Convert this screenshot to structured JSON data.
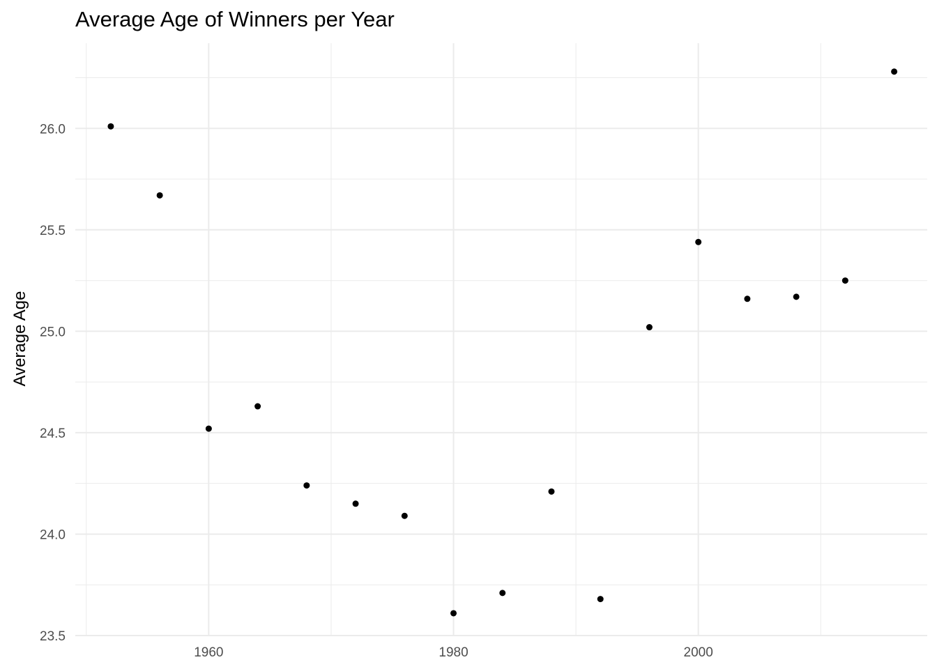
{
  "chart_data": {
    "type": "scatter",
    "title": "Average Age of Winners per Year",
    "xlabel": "",
    "ylabel": "Average Age",
    "xlim": [
      1949.1,
      2018.7
    ],
    "ylim": [
      23.5,
      26.42
    ],
    "x_ticks": [
      1960,
      1980,
      2000
    ],
    "x_tick_labels": [
      "1960",
      "1980",
      "2000"
    ],
    "x_minor_ticks": [
      1950,
      1970,
      1990,
      2010
    ],
    "y_ticks": [
      23.5,
      24.0,
      24.5,
      25.0,
      25.5,
      26.0
    ],
    "y_tick_labels": [
      "23.5",
      "24.0",
      "24.5",
      "25.0",
      "25.5",
      "26.0"
    ],
    "y_minor_ticks": [
      23.75,
      24.25,
      24.75,
      25.25,
      25.75,
      26.25
    ],
    "grid": true,
    "legend": "none",
    "point_color": "#000000",
    "grid_color": "#ebebeb",
    "points": [
      {
        "x": 1952,
        "y": 26.01
      },
      {
        "x": 1956,
        "y": 25.67
      },
      {
        "x": 1960,
        "y": 24.52
      },
      {
        "x": 1964,
        "y": 24.63
      },
      {
        "x": 1968,
        "y": 24.24
      },
      {
        "x": 1972,
        "y": 24.15
      },
      {
        "x": 1976,
        "y": 24.09
      },
      {
        "x": 1980,
        "y": 23.61
      },
      {
        "x": 1984,
        "y": 23.71
      },
      {
        "x": 1988,
        "y": 24.21
      },
      {
        "x": 1992,
        "y": 23.68
      },
      {
        "x": 1996,
        "y": 25.02
      },
      {
        "x": 2000,
        "y": 25.44
      },
      {
        "x": 2004,
        "y": 25.16
      },
      {
        "x": 2008,
        "y": 25.17
      },
      {
        "x": 2012,
        "y": 25.25
      },
      {
        "x": 2016,
        "y": 26.28
      }
    ]
  }
}
